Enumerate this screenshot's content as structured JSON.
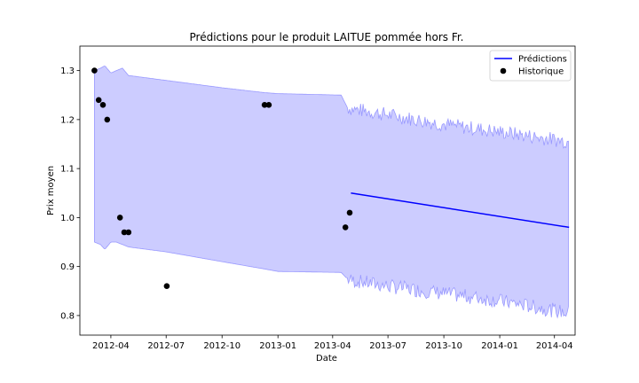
{
  "chart_data": {
    "type": "line",
    "title": "Prédictions pour le produit LAITUE pommée hors Fr.",
    "xlabel": "Date",
    "ylabel": "Prix moyen",
    "x_ticks": [
      "2012-04",
      "2012-07",
      "2012-10",
      "2013-01",
      "2013-04",
      "2013-07",
      "2013-10",
      "2014-01",
      "2014-04"
    ],
    "y_ticks": [
      "0.8",
      "0.9",
      "1.0",
      "1.1",
      "1.2",
      "1.3"
    ],
    "xlim": [
      "2012-02-10",
      "2014-05-05"
    ],
    "ylim": [
      0.76,
      1.35
    ],
    "grid": false,
    "legend_position": "top-right",
    "colors": {
      "prediction_line": "#0000ff",
      "interval_fill": "#ccccff",
      "interval_edge": "#9999ff",
      "historical_points": "#000000"
    },
    "series": [
      {
        "name": "Prédictions",
        "kind": "line",
        "x": [
          "2013-05-01",
          "2014-04-25"
        ],
        "y": [
          1.05,
          0.98
        ]
      },
      {
        "name": "Historique",
        "kind": "scatter",
        "x": [
          "2012-03-05",
          "2012-03-12",
          "2012-03-19",
          "2012-03-26",
          "2012-04-16",
          "2012-04-23",
          "2012-04-30",
          "2012-07-02",
          "2012-12-10",
          "2012-12-17",
          "2013-04-22",
          "2013-04-29"
        ],
        "y": [
          1.3,
          1.24,
          1.23,
          1.2,
          1.0,
          0.97,
          0.97,
          0.86,
          1.23,
          1.23,
          0.98,
          1.01
        ]
      }
    ],
    "interval": {
      "x": [
        "2012-03-05",
        "2012-03-15",
        "2012-03-22",
        "2012-04-01",
        "2012-04-10",
        "2012-04-20",
        "2012-04-30",
        "2012-07-01",
        "2012-10-01",
        "2012-12-10",
        "2013-01-01",
        "2013-04-15",
        "2013-04-25",
        "2013-05-01",
        "2013-07-01",
        "2013-10-01",
        "2014-01-01",
        "2014-04-25"
      ],
      "upper": [
        1.3,
        1.305,
        1.31,
        1.295,
        1.3,
        1.305,
        1.29,
        1.28,
        1.265,
        1.255,
        1.253,
        1.25,
        1.225,
        1.222,
        1.21,
        1.19,
        1.175,
        1.155
      ],
      "lower": [
        0.95,
        0.945,
        0.935,
        0.95,
        0.95,
        0.945,
        0.94,
        0.93,
        0.91,
        0.895,
        0.89,
        0.888,
        0.875,
        0.872,
        0.86,
        0.845,
        0.83,
        0.805
      ]
    }
  }
}
